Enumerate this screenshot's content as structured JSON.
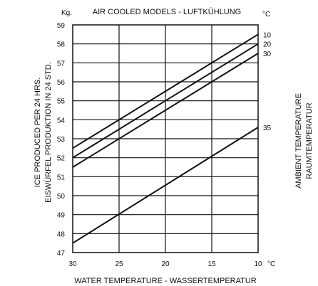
{
  "chart_data": {
    "type": "line",
    "title": "AIR COOLED MODELS - LUFTKÜHLUNG",
    "y_unit": "Kg.",
    "x_unit": "°C",
    "ambient_unit": "°C",
    "xlabel": "WATER TEMPERATURE - WASSERTEMPERATUR",
    "ylabel_lines": [
      "ICE PRODUCED PER 24 HRS.",
      "EISWÜRFEL PRODUKTION IN 24 STD."
    ],
    "right_label_lines": [
      "AMBIENT TEMPERATURE",
      "RAUMTEMPERATUR"
    ],
    "x_ticks": [
      "30",
      "25",
      "20",
      "15",
      "10"
    ],
    "x_values": [
      30,
      25,
      20,
      15,
      10
    ],
    "xlim": [
      30,
      10
    ],
    "y_ticks": [
      "59",
      "58",
      "57",
      "56",
      "55",
      "54",
      "53",
      "52",
      "51",
      "50",
      "49",
      "48",
      "47"
    ],
    "ylim": [
      47,
      59
    ],
    "grid": true,
    "series": [
      {
        "name": "10",
        "x": [
          30,
          10
        ],
        "y": [
          52.5,
          58.5
        ]
      },
      {
        "name": "20",
        "x": [
          30,
          10
        ],
        "y": [
          52.0,
          58.0
        ]
      },
      {
        "name": "30",
        "x": [
          30,
          10
        ],
        "y": [
          51.5,
          57.5
        ]
      },
      {
        "name": "35",
        "x": [
          30,
          10
        ],
        "y": [
          47.5,
          53.6
        ]
      }
    ]
  }
}
